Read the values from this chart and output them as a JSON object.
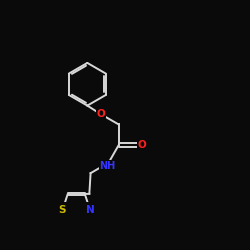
{
  "bg_color": "#0a0a0a",
  "line_color": "#d8d8d8",
  "atom_colors": {
    "O": "#ff2020",
    "N": "#3535ff",
    "S": "#ccbb00",
    "C": "#d8d8d8"
  },
  "figsize": [
    2.5,
    2.5
  ],
  "dpi": 100
}
